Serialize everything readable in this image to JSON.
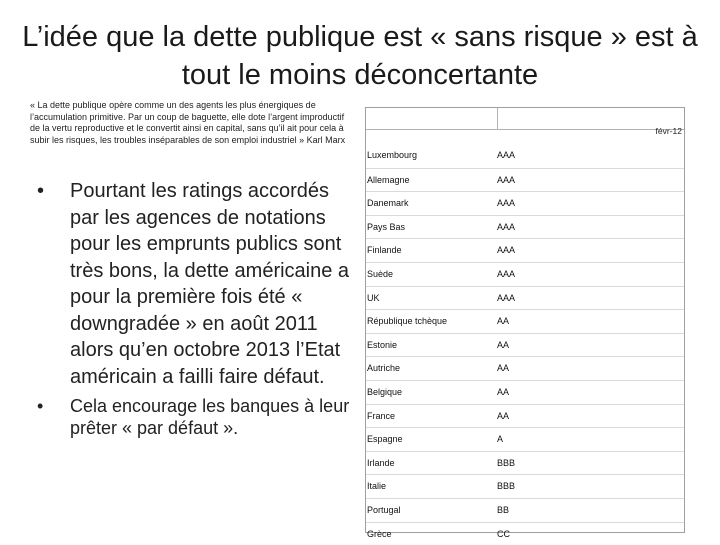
{
  "slide": {
    "title": "L’idée que la dette publique est « sans risque » est à tout le moins déconcertante",
    "quote": "« La dette publique opère comme un des agents les plus énergiques de l’accumulation primitive. Par un coup de baguette, elle dote l’argent improductif de la vertu reproductive et le convertit ainsi en capital, sans qu’il ait pour cela à subir les risques, les troubles inséparables de son emploi industriel » Karl Marx",
    "bullets": [
      {
        "marker": "•",
        "text": "Pourtant les ratings accordés par les agences de notations pour les emprunts publics sont très bons, la dette américaine a pour la première fois été « downgradée » en août 2011 alors qu’en octobre 2013 l’Etat américain a failli faire défaut."
      },
      {
        "marker": "•",
        "text": "Cela encourage les banques à leur prêter « par défaut »."
      }
    ]
  },
  "table": {
    "date_header": "févr-12",
    "rows": [
      {
        "country": "Luxembourg",
        "rating": "AAA"
      },
      {
        "country": "Allemagne",
        "rating": "AAA"
      },
      {
        "country": "Danemark",
        "rating": "AAA"
      },
      {
        "country": "Pays Bas",
        "rating": "AAA"
      },
      {
        "country": "Finlande",
        "rating": "AAA"
      },
      {
        "country": "Suède",
        "rating": "AAA"
      },
      {
        "country": "UK",
        "rating": "AAA"
      },
      {
        "country": "République tchèque",
        "rating": "AA"
      },
      {
        "country": "Estonie",
        "rating": "AA"
      },
      {
        "country": "Autriche",
        "rating": "AA"
      },
      {
        "country": "Belgique",
        "rating": "AA"
      },
      {
        "country": "France",
        "rating": "AA"
      },
      {
        "country": "Espagne",
        "rating": "A"
      },
      {
        "country": "Irlande",
        "rating": "BBB"
      },
      {
        "country": "Italie",
        "rating": "BBB"
      },
      {
        "country": "Portugal",
        "rating": "BB"
      },
      {
        "country": "Grèce",
        "rating": "CC"
      }
    ]
  }
}
